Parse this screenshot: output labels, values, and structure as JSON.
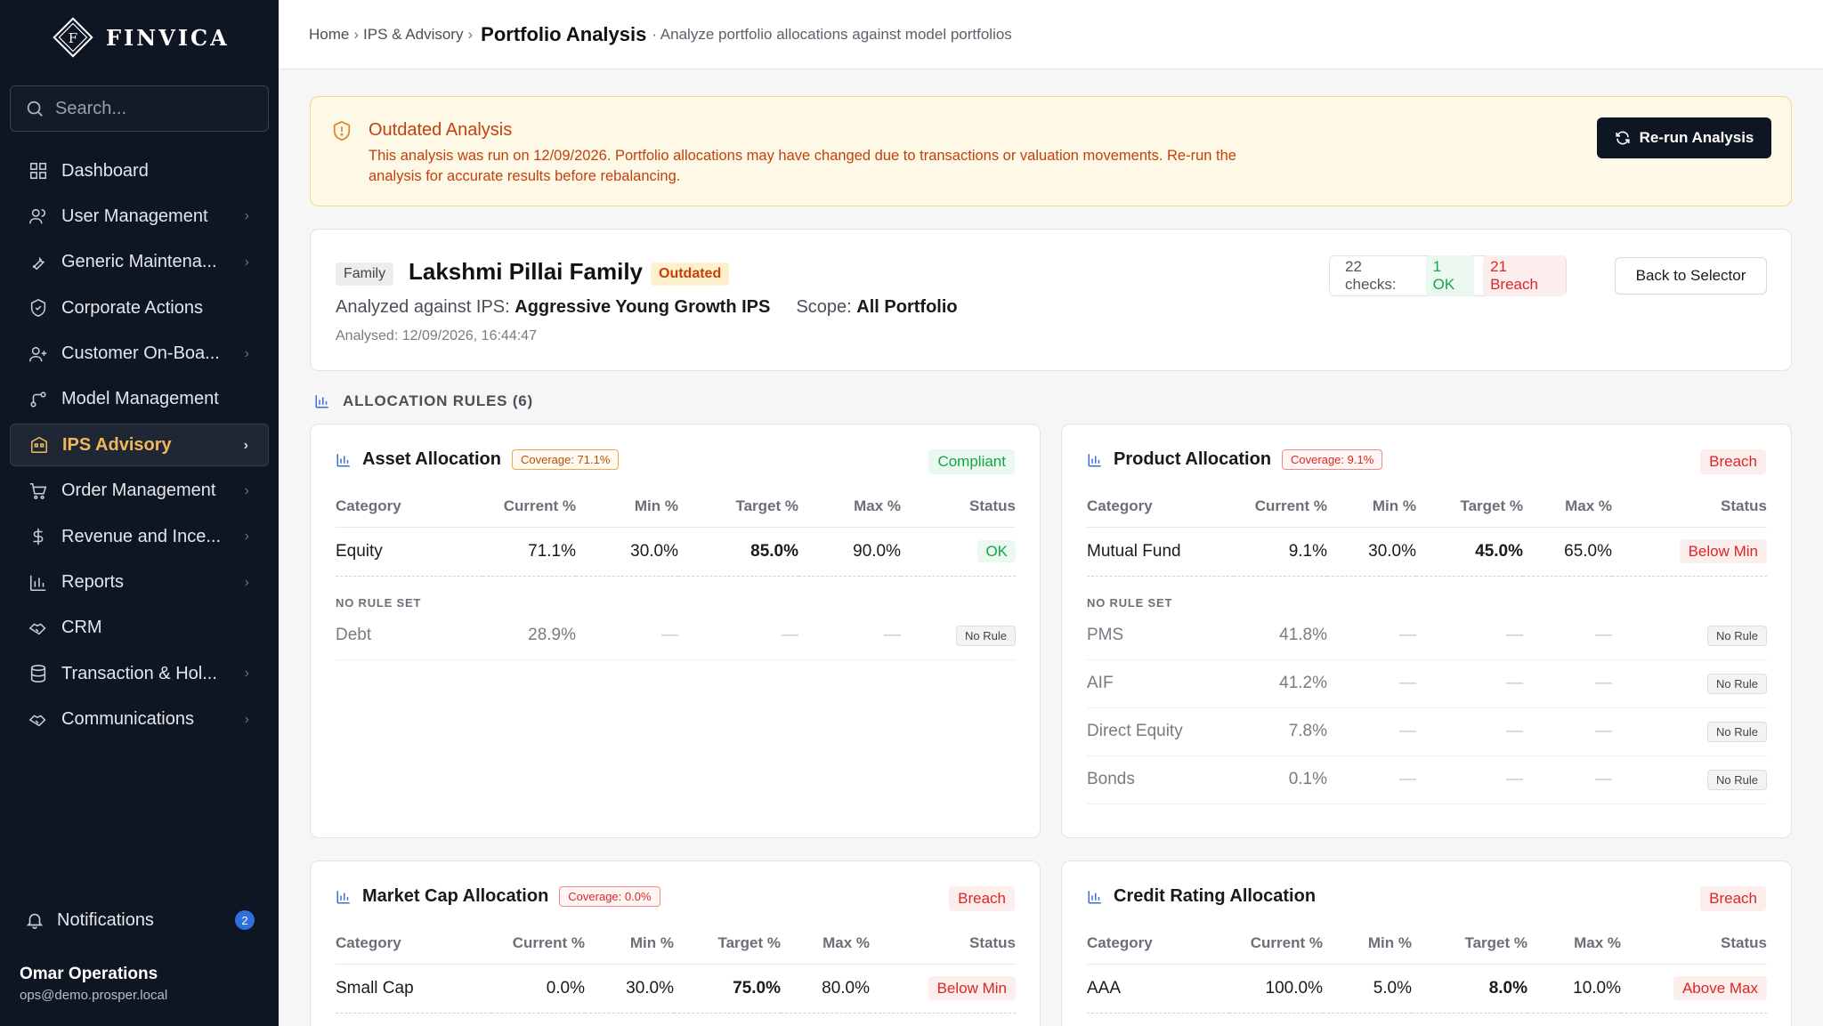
{
  "brand": {
    "name": "FINVICA",
    "mark_letter": "F"
  },
  "search": {
    "placeholder": "Search..."
  },
  "sidebar": {
    "items": [
      {
        "label": "Dashboard",
        "icon": "grid-icon",
        "chevron": false
      },
      {
        "label": "User Management",
        "icon": "users-icon",
        "chevron": true
      },
      {
        "label": "Generic Maintena...",
        "icon": "wrench-icon",
        "chevron": true
      },
      {
        "label": "Corporate Actions",
        "icon": "shield-icon",
        "chevron": false
      },
      {
        "label": "Customer On-Boa...",
        "icon": "user-plus-icon",
        "chevron": true
      },
      {
        "label": "Model Management",
        "icon": "branch-icon",
        "chevron": false
      },
      {
        "label": "IPS Advisory",
        "icon": "building-icon",
        "chevron": true,
        "active": true
      },
      {
        "label": "Order Management",
        "icon": "cart-icon",
        "chevron": true
      },
      {
        "label": "Revenue and Ince...",
        "icon": "dollar-icon",
        "chevron": true
      },
      {
        "label": "Reports",
        "icon": "bar-chart-icon",
        "chevron": true
      },
      {
        "label": "CRM",
        "icon": "handshake-icon",
        "chevron": false
      },
      {
        "label": "Transaction & Hol...",
        "icon": "database-icon",
        "chevron": true
      },
      {
        "label": "Communications",
        "icon": "handshake-icon",
        "chevron": true
      }
    ],
    "notifications": {
      "label": "Notifications",
      "count": "2"
    },
    "user": {
      "name": "Omar Operations",
      "email": "ops@demo.prosper.local"
    }
  },
  "header": {
    "crumb_home": "Home",
    "crumb_ips": "IPS & Advisory",
    "current": "Portfolio Analysis",
    "subtitle": "· Analyze portfolio allocations against model portfolios"
  },
  "alert": {
    "title": "Outdated Analysis",
    "message": "This analysis was run on 12/09/2026. Portfolio allocations may have changed due to transactions or valuation movements. Re-run the analysis for accurate results before rebalancing.",
    "button": "Re-run Analysis"
  },
  "summary": {
    "entity_type": "Family",
    "name": "Lakshmi Pillai Family",
    "status": "Outdated",
    "ips_label": "Analyzed against IPS:",
    "ips_name": "Aggressive Young Growth IPS",
    "scope_label": "Scope:",
    "scope_value": "All Portfolio",
    "analysed": "Analysed: 12/09/2026, 16:44:47",
    "checks_label": "22 checks:",
    "checks_ok": "1 OK",
    "checks_breach": "21 Breach",
    "back_button": "Back to Selector"
  },
  "rules_heading": "ALLOCATION RULES (6)",
  "columns": [
    "Category",
    "Current %",
    "Min %",
    "Target %",
    "Max %",
    "Status"
  ],
  "no_rule_label": "NO RULE SET",
  "rules": [
    {
      "title": "Asset Allocation",
      "coverage": "Coverage: 71.1%",
      "coverage_tone": "amber",
      "status": "Compliant",
      "row": [
        "Equity",
        "71.1%",
        "30.0%",
        "85.0%",
        "90.0%",
        "OK"
      ],
      "norule": [
        [
          "Debt",
          "28.9%"
        ]
      ]
    },
    {
      "title": "Product Allocation",
      "coverage": "Coverage: 9.1%",
      "coverage_tone": "red",
      "status": "Breach",
      "row": [
        "Mutual Fund",
        "9.1%",
        "30.0%",
        "45.0%",
        "65.0%",
        "Below Min"
      ],
      "norule": [
        [
          "PMS",
          "41.8%"
        ],
        [
          "AIF",
          "41.2%"
        ],
        [
          "Direct Equity",
          "7.8%"
        ],
        [
          "Bonds",
          "0.1%"
        ]
      ]
    },
    {
      "title": "Market Cap Allocation",
      "coverage": "Coverage: 0.0%",
      "coverage_tone": "red",
      "status": "Breach",
      "row": [
        "Small Cap",
        "0.0%",
        "30.0%",
        "75.0%",
        "80.0%",
        "Below Min"
      ],
      "norule": []
    },
    {
      "title": "Credit Rating Allocation",
      "coverage": "",
      "coverage_tone": "none",
      "status": "Breach",
      "row": [
        "AAA",
        "100.0%",
        "5.0%",
        "8.0%",
        "10.0%",
        "Above Max"
      ],
      "norule": []
    }
  ],
  "dash": "—",
  "no_rule_chip": "No Rule",
  "colors": {
    "sidebar_bg": "#0f1623",
    "accent": "#f0b85a",
    "ok": "#16a34a",
    "breach": "#dc2626",
    "warning": "#c2410c"
  }
}
